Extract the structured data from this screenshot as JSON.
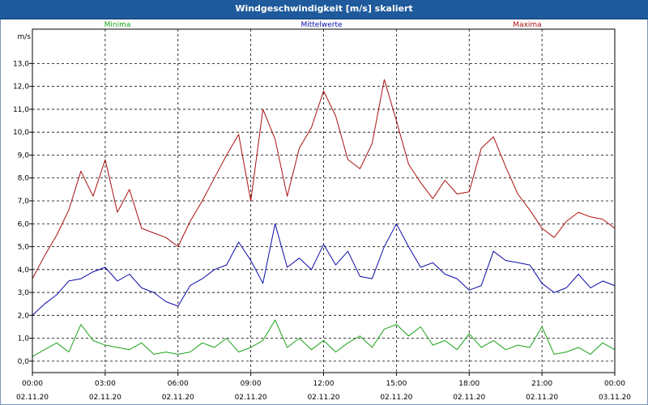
{
  "window": {
    "title": "Windgeschwindigkeit [m/s] skaliert"
  },
  "colors": {
    "titlebar": "#1e5a9c",
    "minima": "#1aa31a",
    "mittelwerte": "#0a0aa8",
    "maxima": "#aa1010",
    "grid": "#000000"
  },
  "chart_data": {
    "type": "line",
    "title": "Windgeschwindigkeit [m/s] skaliert",
    "ylabel": "m/s",
    "xlabel": "",
    "ylim": [
      -0.5,
      14.5
    ],
    "y_ticks": [
      0.0,
      1.0,
      2.0,
      3.0,
      4.0,
      5.0,
      6.0,
      7.0,
      8.0,
      9.0,
      10.0,
      11.0,
      12.0,
      13.0
    ],
    "y_tick_labels": [
      "0,0",
      "1,0",
      "2,0",
      "3,0",
      "4,0",
      "5,0",
      "6,0",
      "7,0",
      "8,0",
      "9,0",
      "10,0",
      "11,0",
      "12,0",
      "13,0"
    ],
    "xlim": [
      0,
      24
    ],
    "x_ticks": [
      0,
      3,
      6,
      9,
      12,
      15,
      18,
      21,
      24
    ],
    "x_tick_labels": [
      [
        "00:00",
        "02.11.20"
      ],
      [
        "03:00",
        "02.11.20"
      ],
      [
        "06:00",
        "02.11.20"
      ],
      [
        "09:00",
        "02.11.20"
      ],
      [
        "12:00",
        "02.11.20"
      ],
      [
        "15:00",
        "02.11.20"
      ],
      [
        "18:00",
        "02.11.20"
      ],
      [
        "21:00",
        "02.11.20"
      ],
      [
        "00:00",
        "03.11.20"
      ]
    ],
    "grid": true,
    "legend_position": "top",
    "series": [
      {
        "name": "Minima",
        "color": "#1aa31a",
        "x": [
          0,
          0.5,
          1,
          1.5,
          2,
          2.5,
          3,
          3.5,
          4,
          4.5,
          5,
          5.5,
          6,
          6.5,
          7,
          7.5,
          8,
          8.5,
          9,
          9.5,
          10,
          10.5,
          11,
          11.5,
          12,
          12.5,
          13,
          13.5,
          14,
          14.5,
          15,
          15.5,
          16,
          16.5,
          17,
          17.5,
          18,
          18.5,
          19,
          19.5,
          20,
          20.5,
          21,
          21.5,
          22,
          22.5,
          23,
          23.5,
          24
        ],
        "values": [
          0.2,
          0.5,
          0.8,
          0.4,
          1.6,
          0.9,
          0.7,
          0.6,
          0.5,
          0.8,
          0.3,
          0.4,
          0.3,
          0.4,
          0.8,
          0.6,
          1.0,
          0.4,
          0.6,
          0.9,
          1.8,
          0.6,
          1.0,
          0.5,
          0.9,
          0.4,
          0.8,
          1.1,
          0.6,
          1.4,
          1.6,
          1.1,
          1.5,
          0.7,
          0.9,
          0.5,
          1.2,
          0.6,
          0.9,
          0.5,
          0.7,
          0.6,
          1.5,
          0.3,
          0.4,
          0.6,
          0.3,
          0.8,
          0.5
        ]
      },
      {
        "name": "Mittelwerte",
        "color": "#0a0aa8",
        "x": [
          0,
          0.5,
          1,
          1.5,
          2,
          2.5,
          3,
          3.5,
          4,
          4.5,
          5,
          5.5,
          6,
          6.5,
          7,
          7.5,
          8,
          8.5,
          9,
          9.5,
          10,
          10.5,
          11,
          11.5,
          12,
          12.5,
          13,
          13.5,
          14,
          14.5,
          15,
          15.5,
          16,
          16.5,
          17,
          17.5,
          18,
          18.5,
          19,
          19.5,
          20,
          20.5,
          21,
          21.5,
          22,
          22.5,
          23,
          23.5,
          24
        ],
        "values": [
          2.0,
          2.5,
          2.9,
          3.5,
          3.6,
          3.9,
          4.1,
          3.5,
          3.8,
          3.2,
          3.0,
          2.6,
          2.4,
          3.3,
          3.6,
          4.0,
          4.2,
          5.2,
          4.4,
          3.4,
          6.0,
          4.1,
          4.5,
          4.0,
          5.1,
          4.2,
          4.8,
          3.7,
          3.6,
          5.0,
          6.0,
          5.0,
          4.1,
          4.3,
          3.8,
          3.6,
          3.1,
          3.3,
          4.8,
          4.4,
          4.3,
          4.2,
          3.4,
          3.0,
          3.2,
          3.8,
          3.2,
          3.5,
          3.3
        ]
      },
      {
        "name": "Maxima",
        "color": "#aa1010",
        "x": [
          0,
          0.5,
          1,
          1.5,
          2,
          2.5,
          3,
          3.5,
          4,
          4.5,
          5,
          5.5,
          6,
          6.5,
          7,
          7.5,
          8,
          8.5,
          9,
          9.5,
          10,
          10.5,
          11,
          11.5,
          12,
          12.5,
          13,
          13.5,
          14,
          14.5,
          15,
          15.5,
          16,
          16.5,
          17,
          17.5,
          18,
          18.5,
          19,
          19.5,
          20,
          20.5,
          21,
          21.5,
          22,
          22.5,
          23,
          23.5,
          24
        ],
        "values": [
          3.6,
          4.6,
          5.5,
          6.6,
          8.3,
          7.2,
          8.8,
          6.5,
          7.5,
          5.8,
          5.6,
          5.4,
          5.0,
          6.1,
          7.0,
          8.0,
          9.0,
          9.9,
          7.0,
          11.0,
          9.7,
          7.2,
          9.3,
          10.2,
          11.8,
          10.7,
          8.8,
          8.4,
          9.5,
          12.3,
          10.5,
          8.6,
          7.8,
          7.1,
          7.9,
          7.3,
          7.4,
          9.3,
          9.8,
          8.5,
          7.3,
          6.6,
          5.8,
          5.4,
          6.1,
          6.5,
          6.3,
          6.2,
          5.8
        ]
      }
    ]
  }
}
